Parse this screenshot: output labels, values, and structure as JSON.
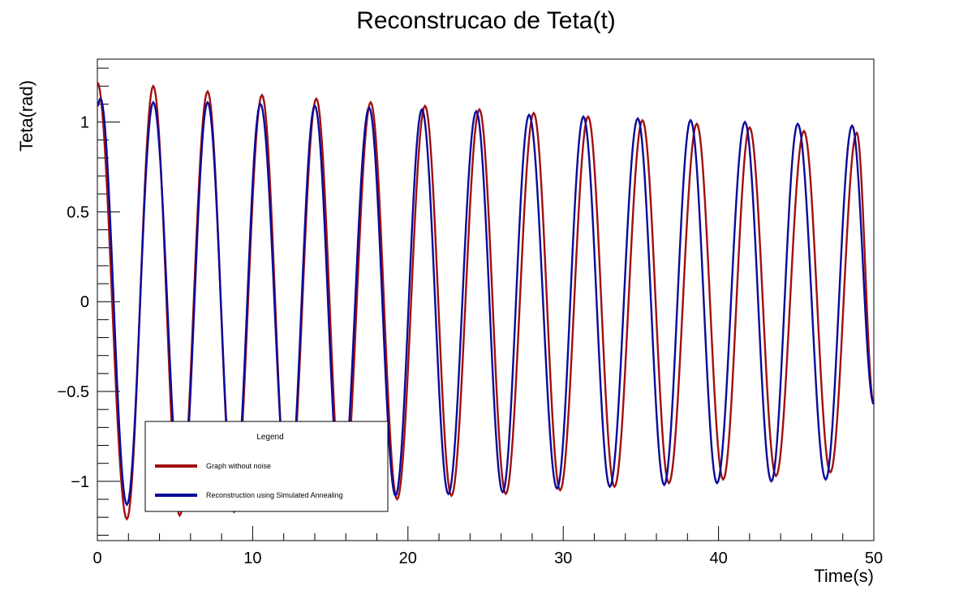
{
  "chart_data": {
    "type": "line",
    "title": "Reconstrucao de Teta(t)",
    "xlabel": "Time(s)",
    "ylabel": "Teta(rad)",
    "xlim": [
      0,
      50
    ],
    "ylim": [
      -1.33,
      1.35
    ],
    "x_ticks": [
      0,
      10,
      20,
      30,
      40,
      50
    ],
    "x_tick_labels": [
      "0",
      "10",
      "20",
      "30",
      "40",
      "50"
    ],
    "y_ticks": [
      -1,
      -0.5,
      0,
      0.5,
      1
    ],
    "y_tick_labels": [
      "−1",
      "−0.5",
      "0",
      "0.5",
      "1"
    ],
    "grid": false,
    "legend": {
      "title": "Legend",
      "position": "bottom-left"
    },
    "series": [
      {
        "name": "Graph without noise",
        "color": "#a01010",
        "x": [
          0.0,
          1.9,
          3.6,
          5.3,
          7.1,
          8.8,
          10.6,
          12.3,
          14.1,
          15.8,
          17.6,
          19.3,
          21.1,
          22.8,
          24.6,
          26.3,
          28.1,
          29.8,
          31.6,
          33.3,
          35.1,
          36.8,
          38.6,
          40.3,
          42.0,
          43.7,
          45.5,
          47.2,
          48.9,
          50.0
        ],
        "y": [
          1.22,
          -1.21,
          1.2,
          -1.19,
          1.17,
          -1.17,
          1.15,
          -1.15,
          1.13,
          -1.13,
          1.11,
          -1.1,
          1.09,
          -1.08,
          1.07,
          -1.07,
          1.05,
          -1.05,
          1.03,
          -1.03,
          1.01,
          -1.01,
          0.99,
          -0.99,
          0.97,
          -0.97,
          0.95,
          -0.95,
          0.94,
          -0.57
        ]
      },
      {
        "name": "Reconstruction using Simulated Annealing",
        "color": "#0a0a99",
        "x": [
          0.0,
          0.2,
          1.9,
          3.6,
          5.4,
          7.1,
          8.8,
          10.5,
          12.3,
          14.0,
          15.7,
          17.5,
          19.2,
          20.9,
          22.6,
          24.4,
          26.1,
          27.8,
          29.6,
          31.3,
          33.0,
          34.8,
          36.5,
          38.2,
          39.9,
          41.7,
          43.4,
          45.1,
          46.9,
          48.6,
          50.0
        ],
        "y": [
          1.09,
          1.13,
          -1.13,
          1.11,
          -1.12,
          1.11,
          -1.11,
          1.1,
          -1.1,
          1.09,
          -1.09,
          1.08,
          -1.08,
          1.07,
          -1.07,
          1.06,
          -1.06,
          1.04,
          -1.04,
          1.03,
          -1.03,
          1.02,
          -1.02,
          1.01,
          -1.01,
          1.0,
          -1.0,
          0.99,
          -0.99,
          0.98,
          -0.57
        ]
      }
    ]
  }
}
